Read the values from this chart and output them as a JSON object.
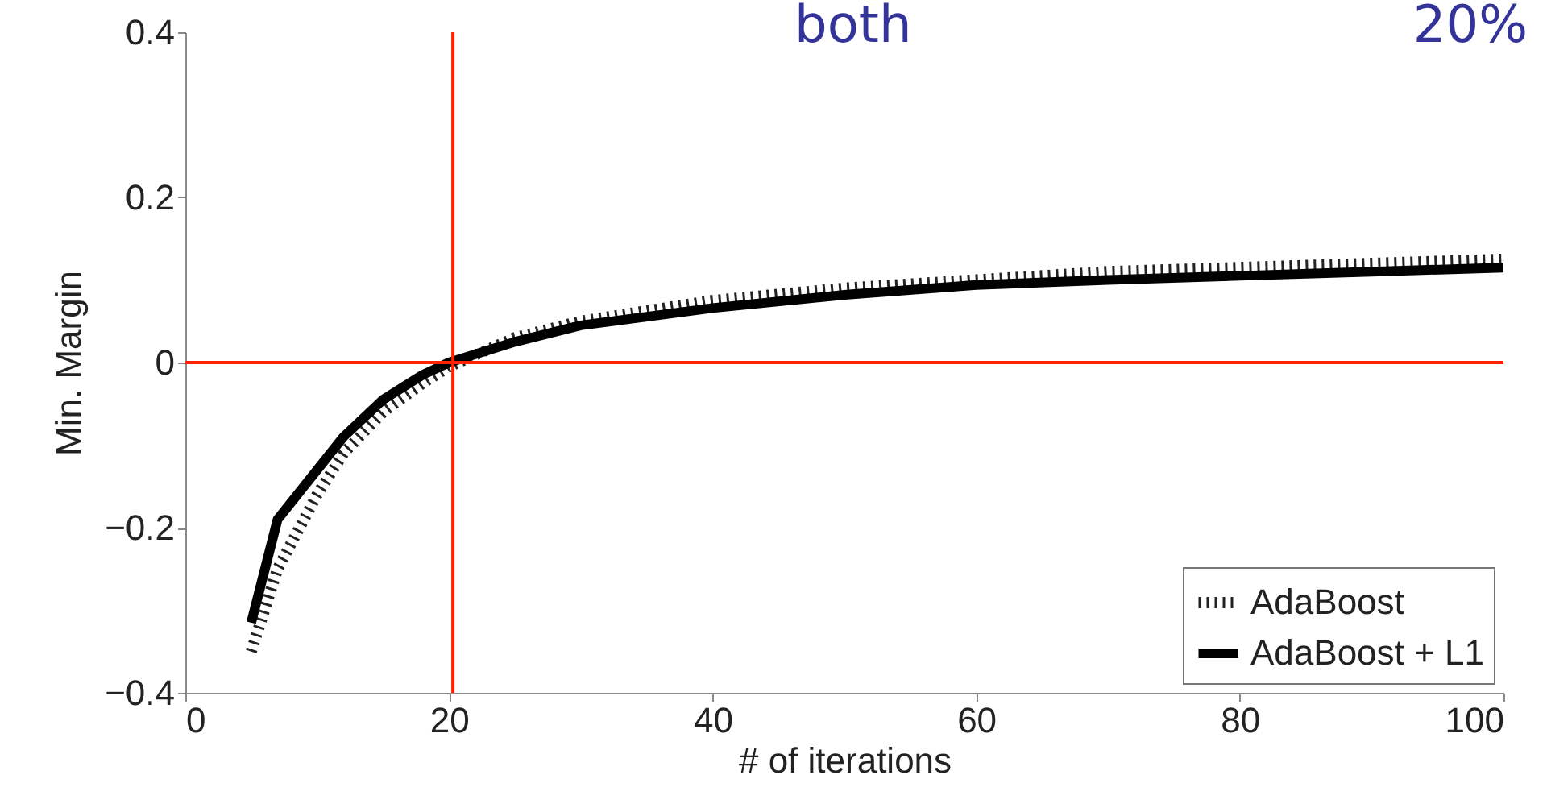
{
  "chart_data": {
    "type": "line",
    "xlabel": "# of iterations",
    "ylabel": "Min. Margin",
    "x": [
      5,
      7,
      10,
      12,
      15,
      18,
      20,
      25,
      30,
      40,
      50,
      60,
      70,
      80,
      90,
      100
    ],
    "series": [
      {
        "name": "AdaBoost",
        "color": "#222222",
        "line_style": "dotted",
        "values": [
          -0.35,
          -0.25,
          -0.16,
          -0.11,
          -0.06,
          -0.025,
          -0.005,
          0.03,
          0.05,
          0.075,
          0.09,
          0.1,
          0.11,
          0.115,
          0.12,
          0.125
        ]
      },
      {
        "name": "AdaBoost + L1",
        "color": "#000000",
        "line_style": "solid",
        "values": [
          -0.315,
          -0.19,
          -0.13,
          -0.09,
          -0.045,
          -0.015,
          0,
          0.025,
          0.045,
          0.066,
          0.082,
          0.094,
          0.1,
          0.105,
          0.11,
          0.115
        ]
      }
    ],
    "xlim": [
      0,
      100
    ],
    "xticks": [
      0,
      20,
      40,
      60,
      80,
      100
    ],
    "ylim": [
      -0.4,
      0.4
    ],
    "yticks": [
      -0.4,
      -0.2,
      0,
      0.2,
      0.4
    ],
    "grid": false,
    "legend": "bottom right",
    "ref_lines": [
      {
        "axis": "y",
        "value": 0,
        "color": "#ff2200"
      },
      {
        "axis": "x",
        "value": 20.3,
        "color": "#ff2200"
      }
    ],
    "annotations": [
      "both",
      "20%"
    ]
  }
}
